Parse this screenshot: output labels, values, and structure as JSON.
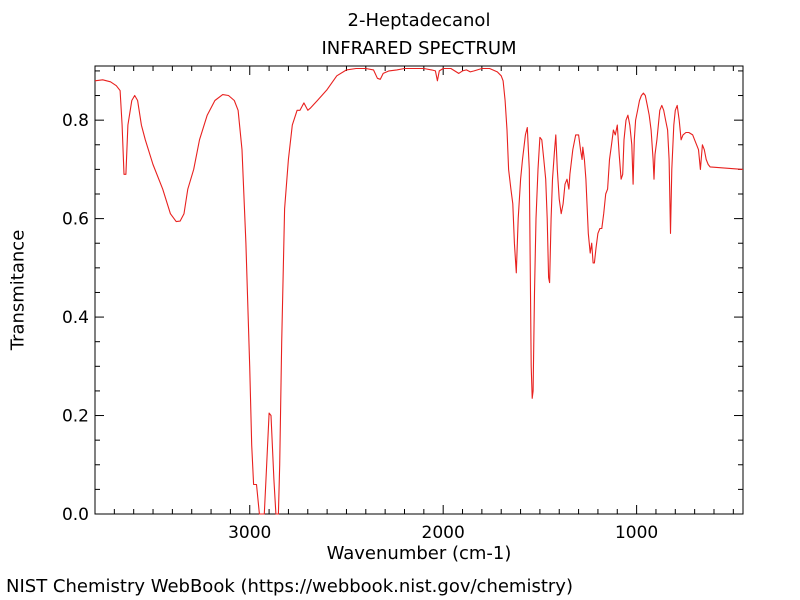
{
  "chart_data": {
    "type": "line",
    "title": "2-Heptadecanol",
    "subtitle": "INFRARED SPECTRUM",
    "xlabel": "Wavenumber (cm-1)",
    "ylabel": "Transmitance",
    "xlim": [
      3800,
      450
    ],
    "ylim": [
      0.0,
      0.9
    ],
    "x_ticks": [
      3000,
      2000,
      1000
    ],
    "y_ticks": [
      0.0,
      0.2,
      0.4,
      0.6,
      0.8
    ],
    "y_tick_labels": [
      "0.0",
      "0.2",
      "0.4",
      "0.6",
      "0.8"
    ],
    "grid": false,
    "series": [
      {
        "color": "#e8211f",
        "points": [
          [
            3800,
            0.88
          ],
          [
            3760,
            0.882
          ],
          [
            3720,
            0.878
          ],
          [
            3690,
            0.87
          ],
          [
            3670,
            0.86
          ],
          [
            3660,
            0.79
          ],
          [
            3650,
            0.69
          ],
          [
            3640,
            0.69
          ],
          [
            3630,
            0.79
          ],
          [
            3610,
            0.84
          ],
          [
            3595,
            0.85
          ],
          [
            3580,
            0.84
          ],
          [
            3560,
            0.79
          ],
          [
            3540,
            0.76
          ],
          [
            3500,
            0.71
          ],
          [
            3450,
            0.66
          ],
          [
            3410,
            0.61
          ],
          [
            3380,
            0.594
          ],
          [
            3360,
            0.595
          ],
          [
            3340,
            0.61
          ],
          [
            3320,
            0.66
          ],
          [
            3290,
            0.7
          ],
          [
            3260,
            0.76
          ],
          [
            3220,
            0.81
          ],
          [
            3180,
            0.84
          ],
          [
            3140,
            0.852
          ],
          [
            3110,
            0.85
          ],
          [
            3080,
            0.84
          ],
          [
            3060,
            0.82
          ],
          [
            3040,
            0.74
          ],
          [
            3020,
            0.55
          ],
          [
            3000,
            0.3
          ],
          [
            2990,
            0.14
          ],
          [
            2980,
            0.06
          ],
          [
            2965,
            0.06
          ],
          [
            2950,
            0.0
          ],
          [
            2925,
            0.0
          ],
          [
            2915,
            0.08
          ],
          [
            2900,
            0.205
          ],
          [
            2890,
            0.2
          ],
          [
            2875,
            0.07
          ],
          [
            2865,
            0.0
          ],
          [
            2852,
            0.0
          ],
          [
            2845,
            0.1
          ],
          [
            2835,
            0.35
          ],
          [
            2820,
            0.62
          ],
          [
            2800,
            0.72
          ],
          [
            2780,
            0.79
          ],
          [
            2755,
            0.82
          ],
          [
            2740,
            0.82
          ],
          [
            2720,
            0.835
          ],
          [
            2700,
            0.82
          ],
          [
            2685,
            0.825
          ],
          [
            2650,
            0.84
          ],
          [
            2600,
            0.862
          ],
          [
            2550,
            0.89
          ],
          [
            2500,
            0.902
          ],
          [
            2450,
            0.905
          ],
          [
            2400,
            0.905
          ],
          [
            2360,
            0.902
          ],
          [
            2340,
            0.885
          ],
          [
            2325,
            0.883
          ],
          [
            2310,
            0.895
          ],
          [
            2280,
            0.9
          ],
          [
            2240,
            0.902
          ],
          [
            2200,
            0.905
          ],
          [
            2150,
            0.905
          ],
          [
            2100,
            0.905
          ],
          [
            2060,
            0.902
          ],
          [
            2040,
            0.9
          ],
          [
            2030,
            0.88
          ],
          [
            2020,
            0.9
          ],
          [
            2000,
            0.905
          ],
          [
            1960,
            0.905
          ],
          [
            1920,
            0.895
          ],
          [
            1900,
            0.9
          ],
          [
            1880,
            0.902
          ],
          [
            1860,
            0.898
          ],
          [
            1840,
            0.9
          ],
          [
            1800,
            0.905
          ],
          [
            1760,
            0.905
          ],
          [
            1720,
            0.898
          ],
          [
            1700,
            0.89
          ],
          [
            1690,
            0.88
          ],
          [
            1680,
            0.84
          ],
          [
            1670,
            0.78
          ],
          [
            1662,
            0.7
          ],
          [
            1650,
            0.66
          ],
          [
            1640,
            0.63
          ],
          [
            1632,
            0.55
          ],
          [
            1622,
            0.49
          ],
          [
            1612,
            0.6
          ],
          [
            1600,
            0.68
          ],
          [
            1590,
            0.72
          ],
          [
            1575,
            0.77
          ],
          [
            1565,
            0.785
          ],
          [
            1555,
            0.7
          ],
          [
            1545,
            0.3
          ],
          [
            1540,
            0.235
          ],
          [
            1535,
            0.25
          ],
          [
            1528,
            0.45
          ],
          [
            1520,
            0.6
          ],
          [
            1510,
            0.7
          ],
          [
            1500,
            0.765
          ],
          [
            1490,
            0.76
          ],
          [
            1480,
            0.72
          ],
          [
            1470,
            0.68
          ],
          [
            1462,
            0.6
          ],
          [
            1455,
            0.48
          ],
          [
            1450,
            0.47
          ],
          [
            1442,
            0.6
          ],
          [
            1435,
            0.68
          ],
          [
            1425,
            0.735
          ],
          [
            1418,
            0.77
          ],
          [
            1410,
            0.7
          ],
          [
            1400,
            0.64
          ],
          [
            1390,
            0.61
          ],
          [
            1380,
            0.63
          ],
          [
            1370,
            0.67
          ],
          [
            1360,
            0.68
          ],
          [
            1350,
            0.66
          ],
          [
            1345,
            0.69
          ],
          [
            1330,
            0.74
          ],
          [
            1315,
            0.77
          ],
          [
            1300,
            0.77
          ],
          [
            1290,
            0.74
          ],
          [
            1282,
            0.72
          ],
          [
            1278,
            0.745
          ],
          [
            1270,
            0.72
          ],
          [
            1262,
            0.68
          ],
          [
            1250,
            0.57
          ],
          [
            1240,
            0.53
          ],
          [
            1232,
            0.55
          ],
          [
            1225,
            0.51
          ],
          [
            1218,
            0.51
          ],
          [
            1210,
            0.54
          ],
          [
            1200,
            0.57
          ],
          [
            1190,
            0.58
          ],
          [
            1180,
            0.58
          ],
          [
            1170,
            0.61
          ],
          [
            1160,
            0.65
          ],
          [
            1150,
            0.66
          ],
          [
            1140,
            0.72
          ],
          [
            1130,
            0.75
          ],
          [
            1120,
            0.78
          ],
          [
            1110,
            0.77
          ],
          [
            1100,
            0.79
          ],
          [
            1090,
            0.73
          ],
          [
            1080,
            0.68
          ],
          [
            1072,
            0.69
          ],
          [
            1065,
            0.76
          ],
          [
            1055,
            0.8
          ],
          [
            1045,
            0.81
          ],
          [
            1035,
            0.79
          ],
          [
            1025,
            0.75
          ],
          [
            1018,
            0.67
          ],
          [
            1012,
            0.76
          ],
          [
            1005,
            0.8
          ],
          [
            995,
            0.82
          ],
          [
            985,
            0.84
          ],
          [
            975,
            0.85
          ],
          [
            965,
            0.855
          ],
          [
            955,
            0.85
          ],
          [
            945,
            0.83
          ],
          [
            935,
            0.81
          ],
          [
            925,
            0.78
          ],
          [
            915,
            0.72
          ],
          [
            910,
            0.68
          ],
          [
            905,
            0.73
          ],
          [
            895,
            0.76
          ],
          [
            880,
            0.82
          ],
          [
            870,
            0.83
          ],
          [
            860,
            0.82
          ],
          [
            850,
            0.8
          ],
          [
            840,
            0.78
          ],
          [
            832,
            0.72
          ],
          [
            825,
            0.57
          ],
          [
            818,
            0.7
          ],
          [
            808,
            0.79
          ],
          [
            800,
            0.82
          ],
          [
            790,
            0.83
          ],
          [
            780,
            0.8
          ],
          [
            770,
            0.76
          ],
          [
            760,
            0.77
          ],
          [
            745,
            0.775
          ],
          [
            730,
            0.775
          ],
          [
            710,
            0.77
          ],
          [
            700,
            0.76
          ],
          [
            690,
            0.75
          ],
          [
            680,
            0.74
          ],
          [
            670,
            0.7
          ],
          [
            660,
            0.75
          ],
          [
            650,
            0.74
          ],
          [
            640,
            0.72
          ],
          [
            630,
            0.71
          ],
          [
            620,
            0.705
          ],
          [
            450,
            0.7
          ]
        ]
      }
    ]
  },
  "footer": "NIST Chemistry WebBook (https://webbook.nist.gov/chemistry)"
}
